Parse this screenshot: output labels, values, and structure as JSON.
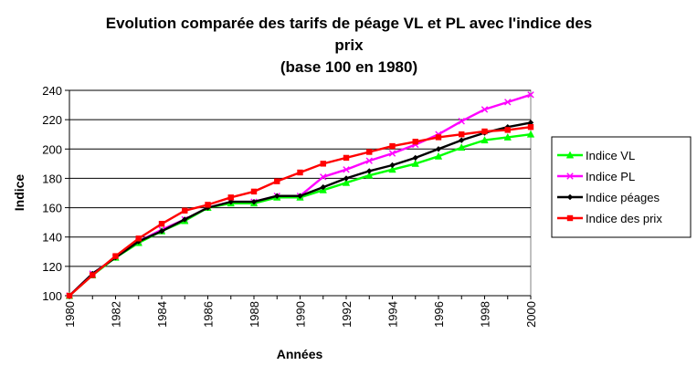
{
  "chart_data": {
    "type": "line",
    "title_lines": [
      "Evolution comparée des tarifs de péage VL et PL avec l'indice des",
      "prix",
      "(base 100 en 1980)"
    ],
    "xlabel": "Années",
    "ylabel": "Indice",
    "ylim": [
      100,
      240
    ],
    "yticks": [
      100,
      120,
      140,
      160,
      180,
      200,
      220,
      240
    ],
    "xticks": [
      1980,
      1982,
      1984,
      1986,
      1988,
      1990,
      1992,
      1994,
      1996,
      1998,
      2000
    ],
    "grid": "horizontal",
    "legend_position": "right",
    "x": [
      1980,
      1981,
      1982,
      1983,
      1984,
      1985,
      1986,
      1987,
      1988,
      1989,
      1990,
      1991,
      1992,
      1993,
      1994,
      1995,
      1996,
      1997,
      1998,
      1999,
      2000
    ],
    "series": [
      {
        "name": "Indice VL",
        "color": "#00ff00",
        "marker": "triangle",
        "values": [
          100,
          114,
          126,
          136,
          144,
          151,
          160,
          163,
          163,
          167,
          167,
          172,
          177,
          182,
          186,
          190,
          195,
          201,
          206,
          208,
          210
        ]
      },
      {
        "name": "Indice PL",
        "color": "#ff00ff",
        "marker": "x",
        "values": [
          100,
          115,
          126,
          137,
          145,
          152,
          160,
          164,
          164,
          168,
          168,
          181,
          186,
          192,
          197,
          203,
          210,
          219,
          227,
          232,
          237
        ]
      },
      {
        "name": "Indice péages",
        "color": "#000000",
        "marker": "diamond",
        "values": [
          100,
          115,
          126,
          137,
          144,
          152,
          160,
          164,
          164,
          168,
          168,
          174,
          180,
          185,
          189,
          194,
          200,
          206,
          211,
          215,
          218
        ]
      },
      {
        "name": "Indice des prix",
        "color": "#ff0000",
        "marker": "square",
        "values": [
          100,
          114,
          127,
          139,
          149,
          158,
          162,
          167,
          171,
          178,
          184,
          190,
          194,
          198,
          202,
          205,
          208,
          210,
          212,
          213,
          215
        ]
      }
    ]
  }
}
